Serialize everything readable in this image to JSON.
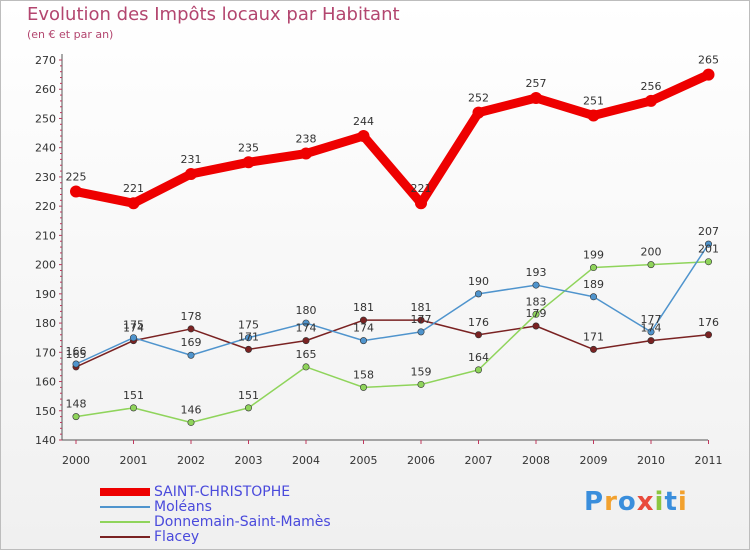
{
  "chart_data": {
    "type": "line",
    "title": "Evolution des Impôts locaux par Habitant",
    "subtitle": "(en € et par an)",
    "xlabel": "",
    "ylabel": "",
    "x": [
      "2000",
      "2001",
      "2002",
      "2003",
      "2004",
      "2005",
      "2006",
      "2007",
      "2008",
      "2009",
      "2010",
      "2011"
    ],
    "ylim": [
      140,
      270
    ],
    "yticks": [
      140,
      150,
      160,
      170,
      180,
      190,
      200,
      210,
      220,
      230,
      240,
      250,
      260,
      270
    ],
    "grid": false,
    "legend_position": "bottom-left",
    "series": [
      {
        "name": "SAINT-CHRISTOPHE",
        "color": "#ee0000",
        "values": [
          225,
          221,
          231,
          235,
          238,
          244,
          221,
          252,
          257,
          251,
          256,
          265
        ]
      },
      {
        "name": "Moléans",
        "color": "#4f94cd",
        "values": [
          166,
          175,
          169,
          175,
          180,
          174,
          177,
          190,
          193,
          189,
          177,
          207
        ]
      },
      {
        "name": "Donnemain-Saint-Mamès",
        "color": "#8fd45b",
        "values": [
          148,
          151,
          146,
          151,
          165,
          158,
          159,
          164,
          183,
          199,
          200,
          201
        ]
      },
      {
        "name": "Flacey",
        "color": "#7a2222",
        "values": [
          165,
          174,
          178,
          171,
          174,
          181,
          181,
          176,
          179,
          171,
          174,
          176
        ]
      }
    ]
  },
  "logo": {
    "text": "Proxiti",
    "letters": [
      "P",
      "r",
      "o",
      "x",
      "i",
      "t",
      "i"
    ],
    "colors": [
      "#3a8edc",
      "#f2a12e",
      "#3a8edc",
      "#e94b3c",
      "#8cc63f",
      "#3a8edc",
      "#f2a12e"
    ]
  }
}
